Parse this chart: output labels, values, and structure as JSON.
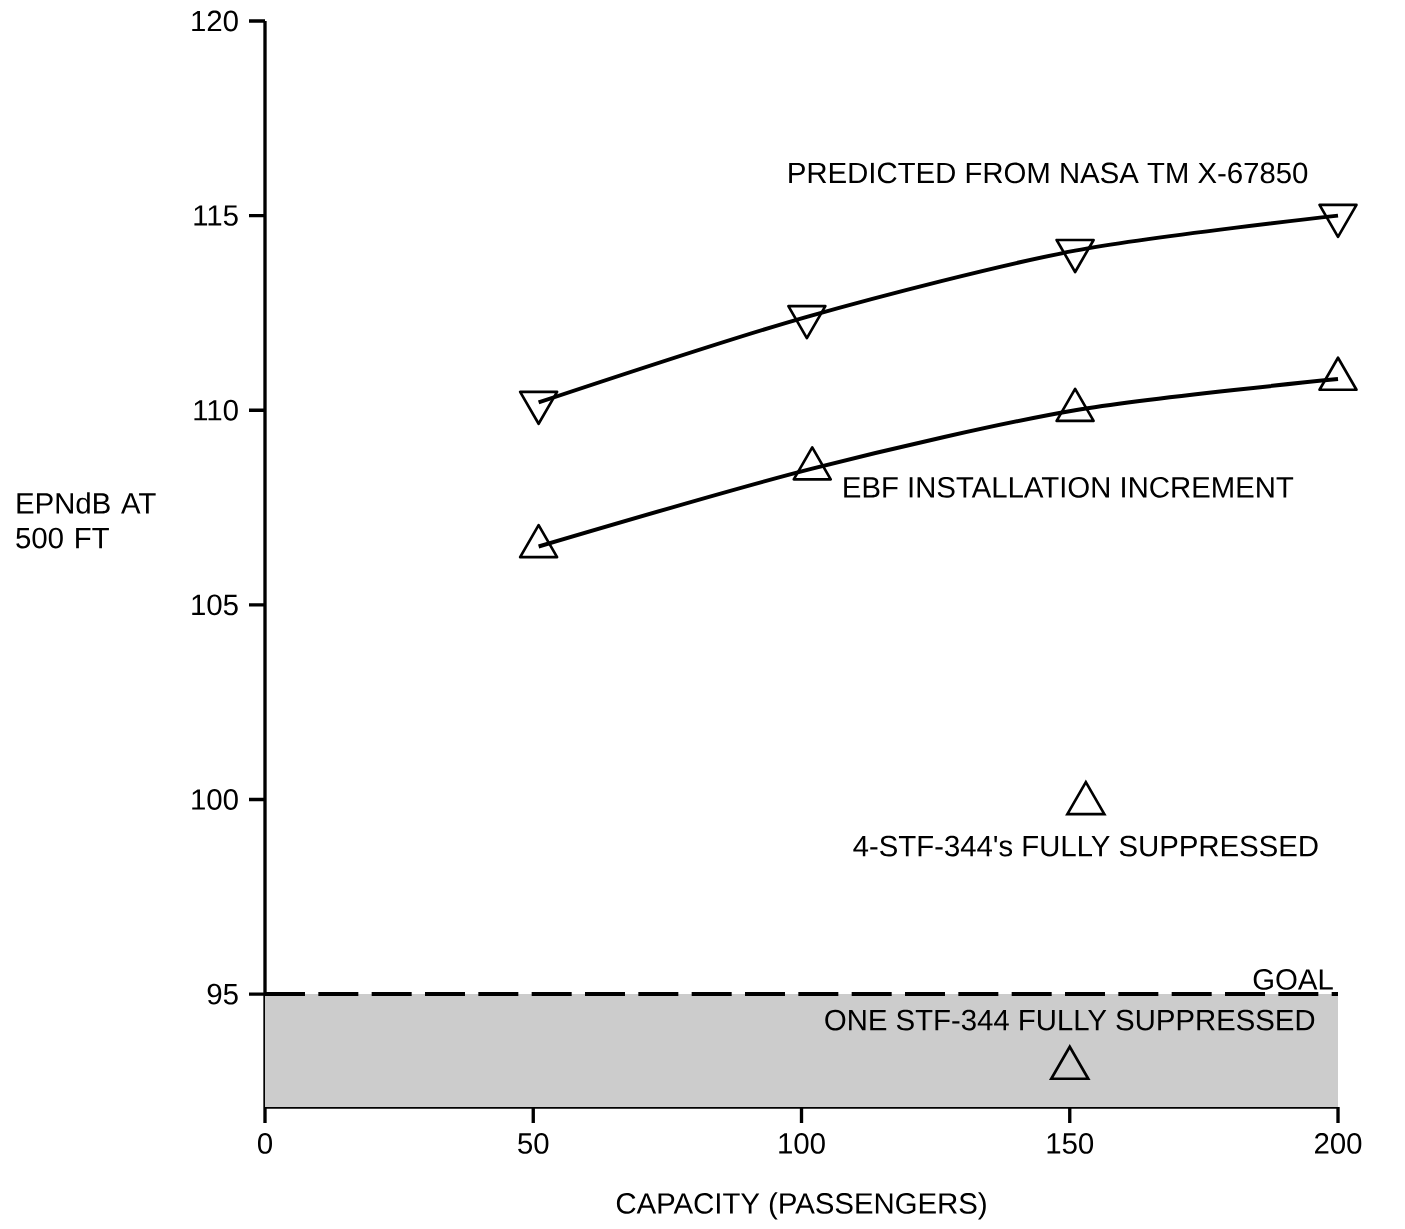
{
  "chart_data": {
    "type": "line",
    "xlabel": "CAPACITY (PASSENGERS)",
    "ylabel": "EPNdB AT 500 FT",
    "xlim": [
      0,
      200
    ],
    "ylim": [
      92.1,
      120
    ],
    "xticks": [
      0,
      50,
      100,
      150,
      200
    ],
    "yticks": [
      95,
      100,
      105,
      110,
      115,
      120
    ],
    "marker": "triangle",
    "line_style": "solid",
    "grid": false,
    "legend": false,
    "series": [
      {
        "name": "PREDICTED FROM NASA TM X-67850",
        "color": "#000000",
        "x": [
          51,
          101,
          151,
          200
        ],
        "values": [
          110.2,
          112.4,
          114.1,
          115.0
        ]
      },
      {
        "name": "EBF INSTALLATION INCREMENT",
        "color": "#000000",
        "x": [
          51,
          102,
          151,
          200
        ],
        "values": [
          106.5,
          108.5,
          110.0,
          110.8
        ]
      },
      {
        "name": "4-STF-344's FULLY SUPPRESSED",
        "type": "scatter",
        "color": "#000000",
        "x": [
          153
        ],
        "values": [
          99.9
        ]
      },
      {
        "name": "ONE STF-344 FULLY SUPPRESSED",
        "type": "scatter",
        "color": "#000000",
        "x": [
          150
        ],
        "values": [
          93.1
        ]
      }
    ],
    "ref_lines": [
      {
        "axis": "y",
        "value": 95,
        "label": "GOAL",
        "line_style": "dashed",
        "color": "#000000"
      }
    ],
    "bands": [
      {
        "axis": "y",
        "from": 92.1,
        "to": 95,
        "color": "#cccccc"
      }
    ]
  }
}
